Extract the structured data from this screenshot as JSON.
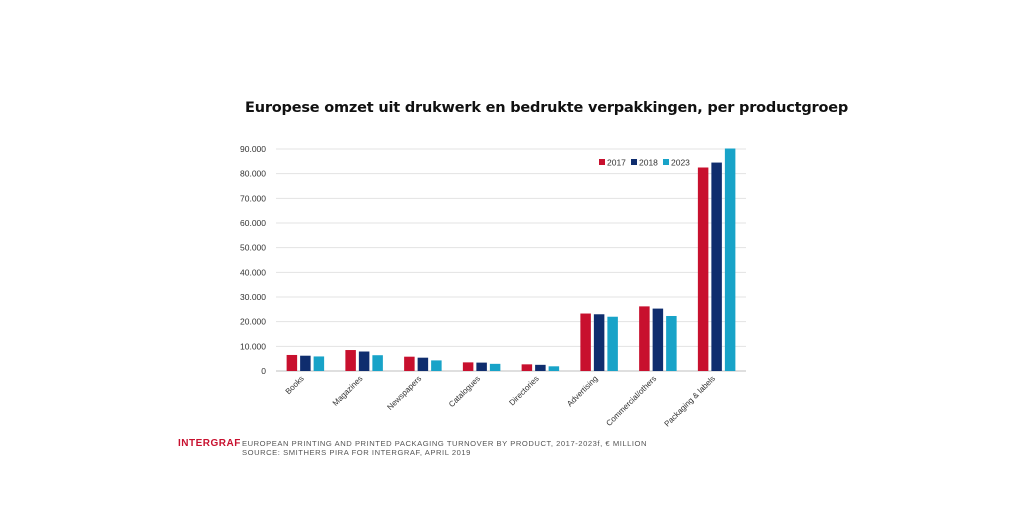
{
  "chart_data": {
    "type": "bar",
    "title": "Europese omzet uit drukwerk en bedrukte verpakkingen, per productgroep",
    "categories": [
      "Books",
      "Magazines",
      "Newspapers",
      "Catalogues",
      "Directories",
      "Advertising",
      "Commercial/others",
      "Packaging & labels"
    ],
    "series": [
      {
        "name": "2017",
        "color": "#c8102e",
        "values": [
          6500,
          8500,
          5800,
          3500,
          2700,
          23300,
          26200,
          82500
        ]
      },
      {
        "name": "2018",
        "color": "#0f2d6e",
        "values": [
          6200,
          7900,
          5400,
          3400,
          2500,
          23000,
          25300,
          84500
        ]
      },
      {
        "name": "2023",
        "color": "#18a3c8",
        "values": [
          5900,
          6400,
          4300,
          2900,
          1900,
          22000,
          22300,
          90200
        ]
      }
    ],
    "ylim": [
      0,
      90000
    ],
    "yticks": [
      0,
      10000,
      20000,
      30000,
      40000,
      50000,
      60000,
      70000,
      80000,
      90000
    ],
    "ytick_labels": [
      "0",
      "10.000",
      "20.000",
      "30.000",
      "40.000",
      "50.000",
      "60.000",
      "70.000",
      "80.000",
      "90.000"
    ],
    "grid": true,
    "legend_position": "top-right"
  },
  "footer": {
    "brand": "INTERGRAF",
    "brand_color": "#c8102e",
    "source_line_1": "EUROPEAN PRINTING AND PRINTED PACKAGING TURNOVER BY PRODUCT, 2017-2023f, € MILLION",
    "source_line_2": "SOURCE: SMITHERS PIRA FOR INTERGRAF, APRIL 2019"
  }
}
